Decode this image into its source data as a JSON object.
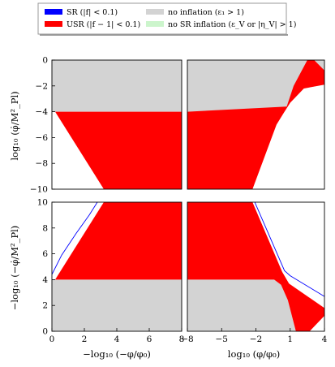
{
  "legend": {
    "entries": [
      {
        "label": "SR (|f| < 0.1)",
        "color": "#0000ff"
      },
      {
        "label": "USR (|f − 1| < 0.1)",
        "color": "#ff0000"
      },
      {
        "label": "no inflation (ε₁ > 1)",
        "color": "#d3d3d3"
      },
      {
        "label": "no SR inflation (ε_V or |η_V| > 1)",
        "color": "#ccf5cc"
      }
    ]
  },
  "colors": {
    "sr": "#0000ff",
    "usr": "#ff0000",
    "no_inflation": "#d3d3d3",
    "no_sr_inflation": "#ccf5cc"
  },
  "chart_data": [
    {
      "type": "area",
      "panel": "top-left",
      "xlim": [
        0,
        8
      ],
      "ylim": [
        -10,
        0
      ],
      "ylabel": "log₁₀ (φ̇/M²_Pl)",
      "yticks": [
        "−10",
        "−8",
        "−6",
        "−4",
        "−2",
        "0"
      ],
      "yticks_values": [
        -10,
        -8,
        -6,
        -4,
        -2,
        0
      ],
      "grid": false,
      "regions": {
        "no_inflation": [
          [
            0,
            -4
          ],
          [
            8,
            -4
          ],
          [
            8,
            0
          ],
          [
            0,
            0
          ]
        ],
        "usr": [
          [
            0.2,
            -4
          ],
          [
            8,
            -4
          ],
          [
            8,
            -10
          ],
          [
            3.2,
            -10
          ]
        ]
      },
      "sr_line": []
    },
    {
      "type": "area",
      "panel": "top-right",
      "xlim": [
        -8,
        4
      ],
      "ylim": [
        -10,
        0
      ],
      "grid": false,
      "regions": {
        "no_inflation": [
          [
            -8,
            -4
          ],
          [
            0.5,
            -4
          ],
          [
            1.0,
            -3.3
          ],
          [
            2.2,
            -2.2
          ],
          [
            4,
            -1.9
          ],
          [
            4,
            0
          ],
          [
            -8,
            0
          ]
        ],
        "usr": [
          [
            -8,
            -4
          ],
          [
            -8,
            -10
          ],
          [
            -2.3,
            -10
          ],
          [
            -0.2,
            -5.0
          ],
          [
            0.5,
            -4
          ],
          [
            1.0,
            -3.3
          ],
          [
            2.2,
            -2.2
          ],
          [
            4,
            -1.9
          ],
          [
            4,
            -0.8
          ],
          [
            3.1,
            0
          ],
          [
            2.5,
            0
          ],
          [
            1.3,
            -2.0
          ],
          [
            0.7,
            -3.6
          ]
        ]
      },
      "sr_line": []
    },
    {
      "type": "area",
      "panel": "bottom-left",
      "xlim": [
        0,
        8
      ],
      "ylim": [
        0,
        10
      ],
      "xlabel": "−log₁₀ (−φ/φ₀)",
      "ylabel": "−log₁₀ (−φ̇/M²_Pl)",
      "xticks": [
        "0",
        "2",
        "4",
        "6",
        "8"
      ],
      "xticks_values": [
        0,
        2,
        4,
        6,
        8
      ],
      "yticks": [
        "0",
        "2",
        "4",
        "6",
        "8",
        "10"
      ],
      "yticks_values": [
        0,
        2,
        4,
        6,
        8,
        10
      ],
      "grid": false,
      "regions": {
        "no_inflation": [
          [
            0,
            0
          ],
          [
            8,
            0
          ],
          [
            8,
            4
          ],
          [
            0,
            4
          ]
        ],
        "usr": [
          [
            0.2,
            4
          ],
          [
            8,
            4
          ],
          [
            8,
            10
          ],
          [
            3.2,
            10
          ]
        ]
      },
      "sr_line": [
        [
          0,
          4.4
        ],
        [
          0.6,
          5.9
        ],
        [
          1.5,
          7.6
        ],
        [
          2.3,
          9.0
        ],
        [
          2.8,
          10
        ]
      ]
    },
    {
      "type": "area",
      "panel": "bottom-right",
      "xlim": [
        -8,
        4
      ],
      "ylim": [
        0,
        10
      ],
      "xlabel": "log₁₀ (φ/φ₀)",
      "xticks": [
        "−8",
        "−5",
        "−2",
        "1",
        "4"
      ],
      "xticks_values": [
        -8,
        -5,
        -2,
        1,
        4
      ],
      "grid": false,
      "regions": {
        "no_inflation": [
          [
            -8,
            0
          ],
          [
            1.5,
            0
          ],
          [
            0.8,
            2.4
          ],
          [
            0.2,
            3.6
          ],
          [
            -0.4,
            4
          ],
          [
            -8,
            4
          ]
        ],
        "usr": [
          [
            -8,
            4
          ],
          [
            -0.4,
            4
          ],
          [
            0.2,
            3.6
          ],
          [
            0.8,
            2.4
          ],
          [
            1.5,
            0
          ],
          [
            2.7,
            0
          ],
          [
            4,
            1.2
          ],
          [
            4,
            1.8
          ],
          [
            0.9,
            3.7
          ],
          [
            0.3,
            4.6
          ],
          [
            -2.3,
            10
          ],
          [
            -8,
            10
          ]
        ]
      },
      "sr_line": [
        [
          -2.1,
          10
        ],
        [
          0.5,
          4.7
        ],
        [
          1.0,
          4.3
        ],
        [
          4,
          2.7
        ]
      ]
    }
  ]
}
